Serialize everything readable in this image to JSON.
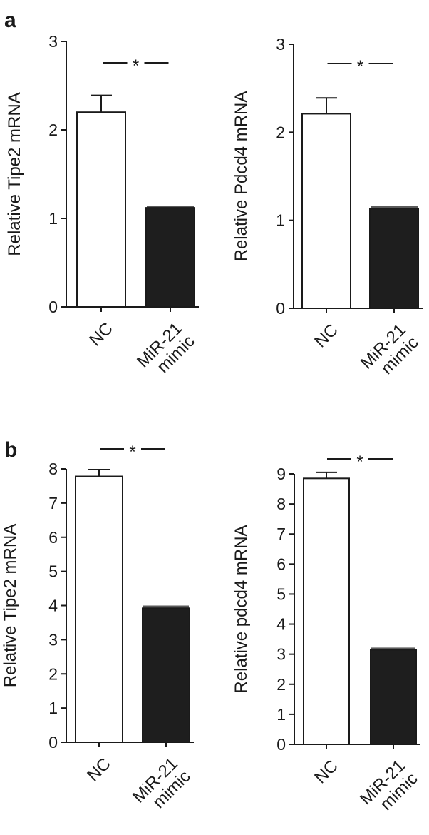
{
  "panels": [
    {
      "letter": "a"
    },
    {
      "letter": "b"
    }
  ],
  "chart_data": [
    {
      "type": "bar",
      "panel": "a",
      "categories": [
        "NC",
        "MiR-21 mimic"
      ],
      "category_lines": [
        [
          "NC"
        ],
        [
          "MiR-21",
          "mimic"
        ]
      ],
      "values": [
        2.2,
        1.12
      ],
      "errors": [
        0.19,
        0.02
      ],
      "bar_colors": [
        "#ffffff",
        "#1e1e1e"
      ],
      "ylabel": "Relative Tipe2 mRNA",
      "ylim": [
        0,
        3
      ],
      "yticks": [
        0,
        1,
        2,
        3
      ],
      "significance": "*",
      "grid": false
    },
    {
      "type": "bar",
      "panel": "a",
      "categories": [
        "NC",
        "MiR-21 mimic"
      ],
      "category_lines": [
        [
          "NC"
        ],
        [
          "MiR-21",
          "mimic"
        ]
      ],
      "values": [
        2.21,
        1.13
      ],
      "errors": [
        0.18,
        0.03
      ],
      "bar_colors": [
        "#ffffff",
        "#1e1e1e"
      ],
      "ylabel": "Relative Pdcd4 mRNA",
      "ylim": [
        0,
        3
      ],
      "yticks": [
        0,
        1,
        2,
        3
      ],
      "significance": "*",
      "grid": false
    },
    {
      "type": "bar",
      "panel": "b",
      "categories": [
        "NC",
        "MiR-21 mimic"
      ],
      "category_lines": [
        [
          "NC"
        ],
        [
          "MiR-21",
          "mimic"
        ]
      ],
      "values": [
        7.78,
        3.92
      ],
      "errors": [
        0.2,
        0.08
      ],
      "bar_colors": [
        "#ffffff",
        "#1e1e1e"
      ],
      "ylabel": "Relative Tipe2 mRNA",
      "ylim": [
        0,
        8
      ],
      "yticks": [
        0,
        1,
        2,
        3,
        4,
        5,
        6,
        7,
        8
      ],
      "significance": "*",
      "grid": false
    },
    {
      "type": "bar",
      "panel": "b",
      "categories": [
        "NC",
        "MiR-21 mimic"
      ],
      "category_lines": [
        [
          "NC"
        ],
        [
          "MiR-21",
          "mimic"
        ]
      ],
      "values": [
        8.85,
        3.15
      ],
      "errors": [
        0.2,
        0.07
      ],
      "bar_colors": [
        "#ffffff",
        "#1e1e1e"
      ],
      "ylabel": "Relative pdcd4 mRNA",
      "ylim": [
        0,
        9
      ],
      "yticks": [
        0,
        1,
        2,
        3,
        4,
        5,
        6,
        7,
        8,
        9
      ],
      "significance": "*",
      "grid": false
    }
  ]
}
